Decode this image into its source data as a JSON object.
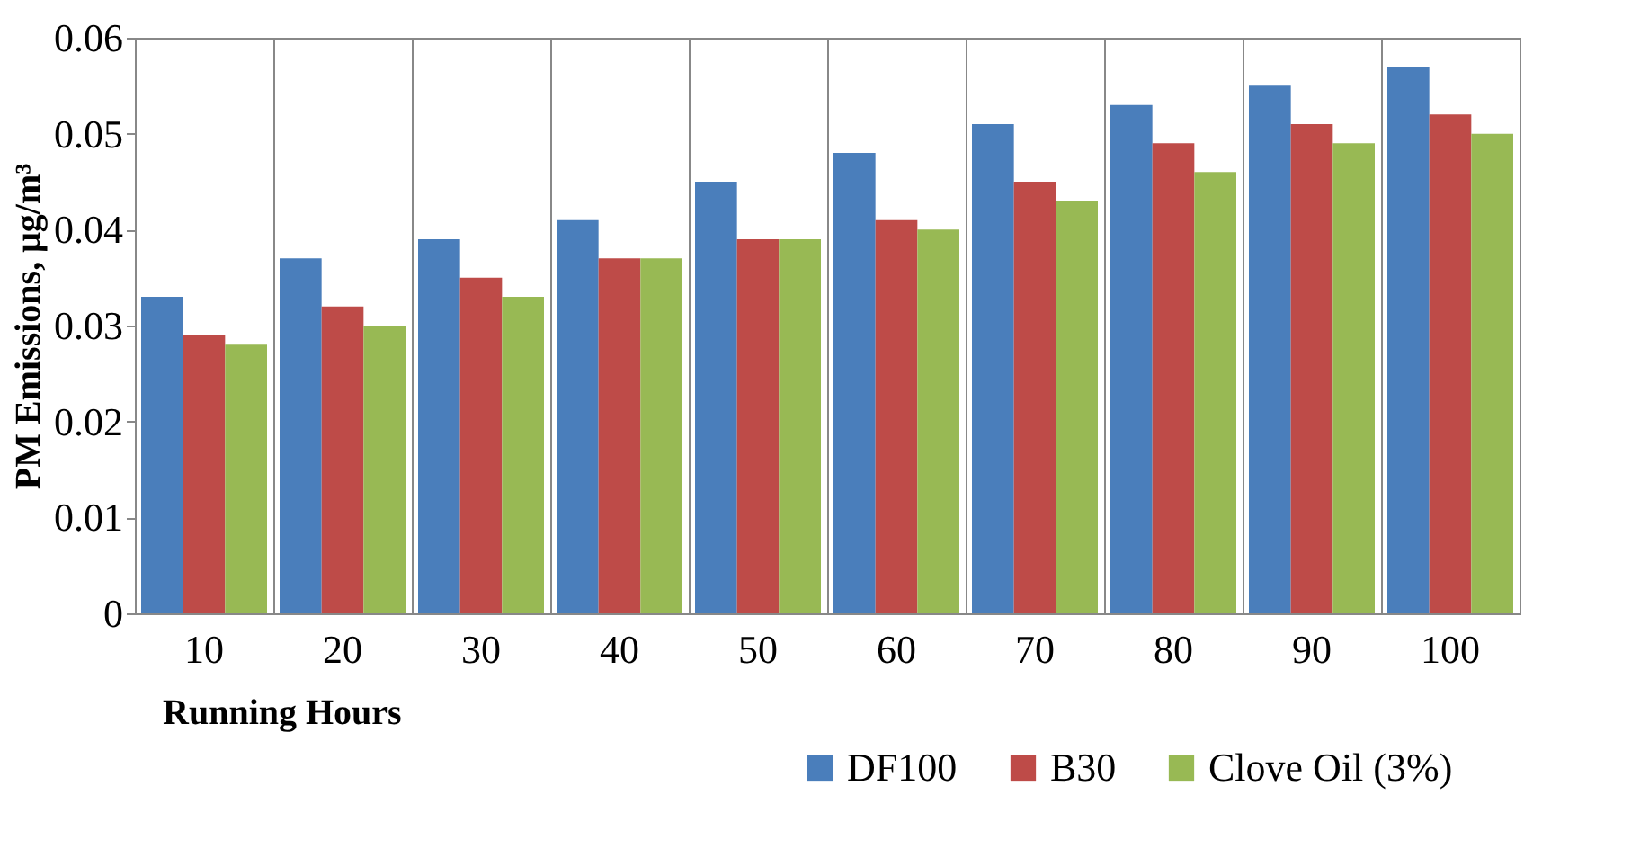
{
  "chart_data": {
    "type": "bar",
    "xlabel": "Running Hours",
    "ylabel": "PM Emissions, μg/m³",
    "categories": [
      "10",
      "20",
      "30",
      "40",
      "50",
      "60",
      "70",
      "80",
      "90",
      "100"
    ],
    "series": [
      {
        "name": "DF100",
        "color": "#4a7ebb",
        "values": [
          0.033,
          0.037,
          0.039,
          0.041,
          0.045,
          0.048,
          0.051,
          0.053,
          0.055,
          0.057
        ]
      },
      {
        "name": "B30",
        "color": "#be4b48",
        "values": [
          0.029,
          0.032,
          0.035,
          0.037,
          0.039,
          0.041,
          0.045,
          0.049,
          0.051,
          0.052
        ]
      },
      {
        "name": "Clove Oil (3%)",
        "color": "#98b954",
        "values": [
          0.028,
          0.03,
          0.033,
          0.037,
          0.039,
          0.04,
          0.043,
          0.046,
          0.049,
          0.05
        ]
      }
    ],
    "ylim": [
      0,
      0.06
    ],
    "yticks": [
      0,
      0.01,
      0.02,
      0.03,
      0.04,
      0.05,
      0.06
    ],
    "grid": "x",
    "legend": "bottom"
  }
}
